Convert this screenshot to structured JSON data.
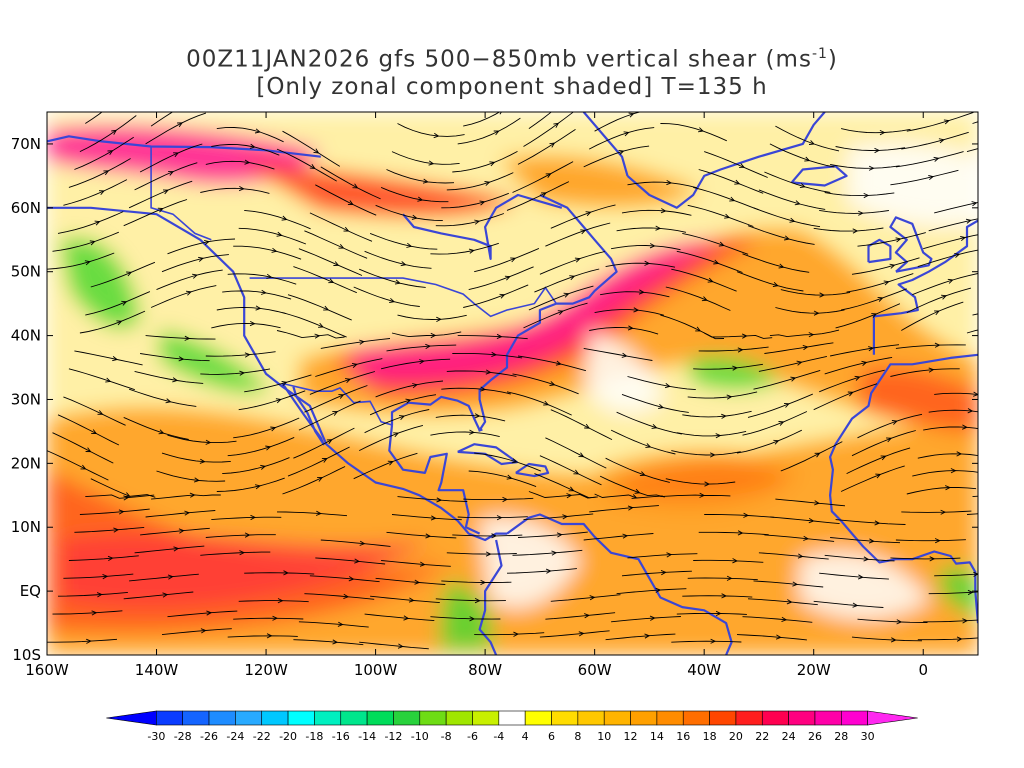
{
  "title": {
    "line1_prefix": "00Z11JAN2026 gfs 500−850mb vertical shear (ms",
    "line1_sup": "-1",
    "line1_suffix": ")",
    "line2": "[Only zonal component shaded] T=135 h"
  },
  "map": {
    "lon_range": [
      -160,
      10
    ],
    "lat_range": [
      -10,
      75
    ],
    "lat_labels": [
      "70N",
      "60N",
      "50N",
      "40N",
      "30N",
      "20N",
      "10N",
      "EQ",
      "10S"
    ],
    "lat_values": [
      70,
      60,
      50,
      40,
      30,
      20,
      10,
      0,
      -10
    ],
    "lon_labels": [
      "160W",
      "140W",
      "120W",
      "100W",
      "80W",
      "60W",
      "40W",
      "20W",
      "0"
    ],
    "lon_values": [
      -160,
      -140,
      -120,
      -100,
      -80,
      -60,
      -40,
      -20,
      0
    ],
    "coastline_color": "#3a46d6",
    "streamline_color": "#000000"
  },
  "colorbar": {
    "labels": [
      "-30",
      "-28",
      "-26",
      "-24",
      "-22",
      "-20",
      "-18",
      "-16",
      "-14",
      "-12",
      "-10",
      "-8",
      "-6",
      "-4",
      "4",
      "6",
      "8",
      "10",
      "12",
      "14",
      "16",
      "18",
      "20",
      "22",
      "24",
      "26",
      "28",
      "30"
    ],
    "colors": [
      "#0000ff",
      "#0a3cff",
      "#1464ff",
      "#1e8cff",
      "#28aaff",
      "#00c8ff",
      "#00ffff",
      "#00f0c0",
      "#00e68c",
      "#00dc5a",
      "#28d23c",
      "#6edc14",
      "#a0e600",
      "#c8f000",
      "#ffffff",
      "#ffff00",
      "#ffdc00",
      "#ffc800",
      "#ffb400",
      "#ffa000",
      "#ff8c00",
      "#ff6e00",
      "#ff4600",
      "#ff1e1e",
      "#ff0050",
      "#ff0080",
      "#ff00a8",
      "#ff00d0",
      "#ff28f0"
    ]
  }
}
